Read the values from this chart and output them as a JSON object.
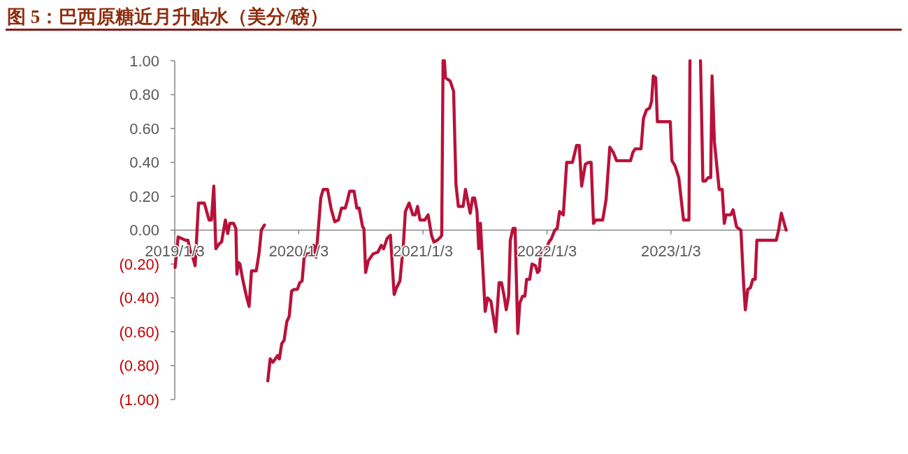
{
  "chart_data": {
    "type": "line",
    "title": "图 5：巴西原糖近月升贴水（美分/磅）",
    "series": [
      {
        "color": "#b8123a",
        "x": [
          "2019-01-04",
          "2019-01-13",
          "2019-02-04",
          "2019-02-11",
          "2019-02-18",
          "2019-02-21",
          "2019-03-04",
          "2019-03-14",
          "2019-03-31",
          "2019-04-14",
          "2019-04-21",
          "2019-04-28",
          "2019-05-04",
          "2019-05-14",
          "2019-05-21",
          "2019-06-01",
          "2019-06-08",
          "2019-06-14",
          "2019-06-25",
          "2019-07-02",
          "2019-07-05",
          "2019-07-09",
          "2019-07-14",
          "2019-07-22",
          "2019-08-02",
          "2019-08-10",
          "2019-08-17",
          "2019-08-31",
          "2019-09-08",
          "2019-09-15",
          "2019-09-24"
        ],
        "values": [
          -0.22,
          -0.04,
          -0.06,
          -0.06,
          -0.13,
          -0.13,
          -0.21,
          0.16,
          0.16,
          0.06,
          0.06,
          0.26,
          -0.11,
          -0.08,
          -0.07,
          0.06,
          -0.02,
          0.04,
          0.04,
          0.01,
          -0.26,
          -0.19,
          -0.2,
          -0.29,
          -0.39,
          -0.45,
          -0.24,
          -0.24,
          -0.14,
          0.0,
          0.03
        ]
      },
      {
        "color": "#b8123a",
        "x": [
          "2019-10-04",
          "2019-10-11",
          "2019-10-19",
          "2019-11-02",
          "2019-11-07",
          "2019-11-14",
          "2019-11-21",
          "2019-11-29",
          "2019-12-06",
          "2019-12-13",
          "2019-12-20",
          "2019-12-30",
          "2020-01-06",
          "2020-01-13",
          "2020-01-19",
          "2020-01-27",
          "2020-02-06",
          "2020-02-16",
          "2020-02-23",
          "2020-03-08",
          "2020-03-15",
          "2020-03-28",
          "2020-04-07",
          "2020-04-18",
          "2020-04-29",
          "2020-05-08",
          "2020-05-19",
          "2020-05-26",
          "2020-06-01",
          "2020-06-14",
          "2020-06-22",
          "2020-06-29",
          "2020-07-09",
          "2020-07-13",
          "2020-07-18",
          "2020-07-26",
          "2020-08-09",
          "2020-08-23",
          "2020-09-02",
          "2020-09-09",
          "2020-09-19",
          "2020-09-29",
          "2020-10-10",
          "2020-10-17",
          "2020-10-27",
          "2020-11-06",
          "2020-11-12",
          "2020-11-23",
          "2020-12-04",
          "2020-12-11",
          "2020-12-18",
          "2020-12-25",
          "2021-01-08",
          "2021-01-18",
          "2021-01-28",
          "2021-02-04",
          "2021-02-14",
          "2021-02-24",
          "2021-02-27",
          "2021-03-03",
          "2021-03-07",
          "2021-03-10",
          "2021-03-24",
          "2021-04-03",
          "2021-04-10",
          "2021-04-17",
          "2021-05-01",
          "2021-05-08",
          "2021-05-22",
          "2021-05-29",
          "2021-06-04",
          "2021-06-11",
          "2021-06-16",
          "2021-06-21",
          "2021-07-05",
          "2021-07-12",
          "2021-07-22",
          "2021-08-05",
          "2021-08-15",
          "2021-08-22",
          "2021-08-29",
          "2021-09-05",
          "2021-09-12",
          "2021-09-17",
          "2021-09-25",
          "2021-10-01",
          "2021-10-09",
          "2021-10-15",
          "2021-10-23",
          "2021-10-30",
          "2021-11-04",
          "2021-11-13",
          "2021-11-20",
          "2021-11-30",
          "2021-12-06",
          "2021-12-11",
          "2021-12-17",
          "2021-12-31",
          "2022-01-09",
          "2022-01-16",
          "2022-01-26",
          "2022-02-02",
          "2022-02-09",
          "2022-02-20",
          "2022-03-02",
          "2022-03-19",
          "2022-03-31",
          "2022-04-08",
          "2022-04-15",
          "2022-04-26",
          "2022-05-06",
          "2022-05-13",
          "2022-05-20",
          "2022-05-27",
          "2022-06-16",
          "2022-06-26",
          "2022-07-07",
          "2022-07-17",
          "2022-07-27",
          "2022-09-06",
          "2022-09-13",
          "2022-09-20",
          "2022-10-07",
          "2022-10-14",
          "2022-10-23",
          "2022-11-01",
          "2022-11-07",
          "2022-11-12",
          "2022-11-19",
          "2022-11-24",
          "2023-01-01",
          "2023-01-06",
          "2023-01-15",
          "2023-01-26",
          "2023-02-09",
          "2023-02-25",
          "2023-02-28"
        ],
        "values": [
          -0.89,
          -0.76,
          -0.78,
          -0.74,
          -0.76,
          -0.67,
          -0.65,
          -0.54,
          -0.51,
          -0.36,
          -0.35,
          -0.35,
          -0.31,
          -0.3,
          -0.16,
          -0.14,
          -0.14,
          -0.09,
          -0.16,
          0.19,
          0.24,
          0.24,
          0.13,
          0.05,
          0.06,
          0.13,
          0.13,
          0.18,
          0.23,
          0.23,
          0.13,
          0.13,
          0.02,
          0.01,
          -0.25,
          -0.18,
          -0.14,
          -0.13,
          -0.09,
          -0.11,
          -0.05,
          -0.03,
          -0.38,
          -0.34,
          -0.3,
          -0.09,
          0.11,
          0.16,
          0.09,
          0.09,
          0.14,
          0.06,
          0.06,
          0.09,
          -0.03,
          -0.07,
          -0.06,
          -0.04,
          -0.03,
          1.0,
          1.0,
          0.9,
          0.88,
          0.82,
          0.27,
          0.14,
          0.14,
          0.24,
          0.1,
          0.19,
          0.19,
          0.11,
          -0.11,
          0.04,
          -0.48,
          -0.4,
          -0.42,
          -0.6,
          -0.31,
          -0.31,
          -0.38,
          -0.47,
          -0.39,
          -0.06,
          0.01,
          0.01,
          -0.61,
          -0.43,
          -0.39,
          -0.39,
          -0.29,
          -0.29,
          -0.2,
          -0.21,
          -0.25,
          -0.24,
          -0.11,
          -0.11,
          -0.07,
          -0.05,
          0.0,
          0.01,
          0.11,
          0.09,
          0.4,
          0.4,
          0.5,
          0.5,
          0.26,
          0.39,
          0.4,
          0.4,
          0.04,
          0.06,
          0.06,
          0.18,
          0.49,
          0.46,
          0.41,
          0.41,
          0.46,
          0.48,
          0.48,
          0.66,
          0.71,
          0.72,
          0.76,
          0.91,
          0.9,
          0.64,
          0.64,
          0.41,
          0.38,
          0.31,
          0.06,
          0.06,
          1.0
        ]
      },
      {
        "color": "#b8123a",
        "x": [
          "2023-03-31",
          "2023-04-07",
          "2023-04-14",
          "2023-04-23",
          "2023-04-30",
          "2023-05-04",
          "2023-05-11",
          "2023-05-25",
          "2023-06-03",
          "2023-06-09",
          "2023-06-14",
          "2023-06-28",
          "2023-07-05",
          "2023-07-15",
          "2023-07-21",
          "2023-07-28",
          "2023-08-05",
          "2023-08-10",
          "2023-08-17",
          "2023-08-25",
          "2023-09-01",
          "2023-09-08",
          "2023-09-13",
          "2023-11-09",
          "2023-11-16",
          "2023-11-24",
          "2023-12-08"
        ],
        "values": [
          1.0,
          0.29,
          0.29,
          0.31,
          0.31,
          0.91,
          0.52,
          0.24,
          0.24,
          0.04,
          0.09,
          0.09,
          0.12,
          0.02,
          0.01,
          0.0,
          -0.32,
          -0.47,
          -0.35,
          -0.34,
          -0.29,
          -0.29,
          -0.06,
          -0.06,
          0.0,
          0.1,
          0.0
        ]
      }
    ],
    "xlim": [
      "2019-01-03",
      "2023-12-15"
    ],
    "xticks": [
      {
        "value": "2019-01-03",
        "label": "2019/1/3"
      },
      {
        "value": "2020-01-03",
        "label": "2020/1/3"
      },
      {
        "value": "2021-01-03",
        "label": "2021/1/3"
      },
      {
        "value": "2022-01-03",
        "label": "2022/1/3"
      },
      {
        "value": "2023-01-03",
        "label": "2023/1/3"
      }
    ],
    "ylim": [
      -1,
      1
    ],
    "yticks": [
      {
        "value": 1,
        "label": "1.00"
      },
      {
        "value": 0.8,
        "label": "0.80"
      },
      {
        "value": 0.6,
        "label": "0.60"
      },
      {
        "value": 0.4,
        "label": "0.40"
      },
      {
        "value": 0.2,
        "label": "0.20"
      },
      {
        "value": 0,
        "label": "0.00"
      },
      {
        "value": -0.2,
        "label": "(0.20)"
      },
      {
        "value": -0.4,
        "label": "(0.40)"
      },
      {
        "value": -0.6,
        "label": "(0.60)"
      },
      {
        "value": -0.8,
        "label": "(0.80)"
      },
      {
        "value": -1,
        "label": "(1.00)"
      }
    ],
    "line_style": "solid"
  }
}
